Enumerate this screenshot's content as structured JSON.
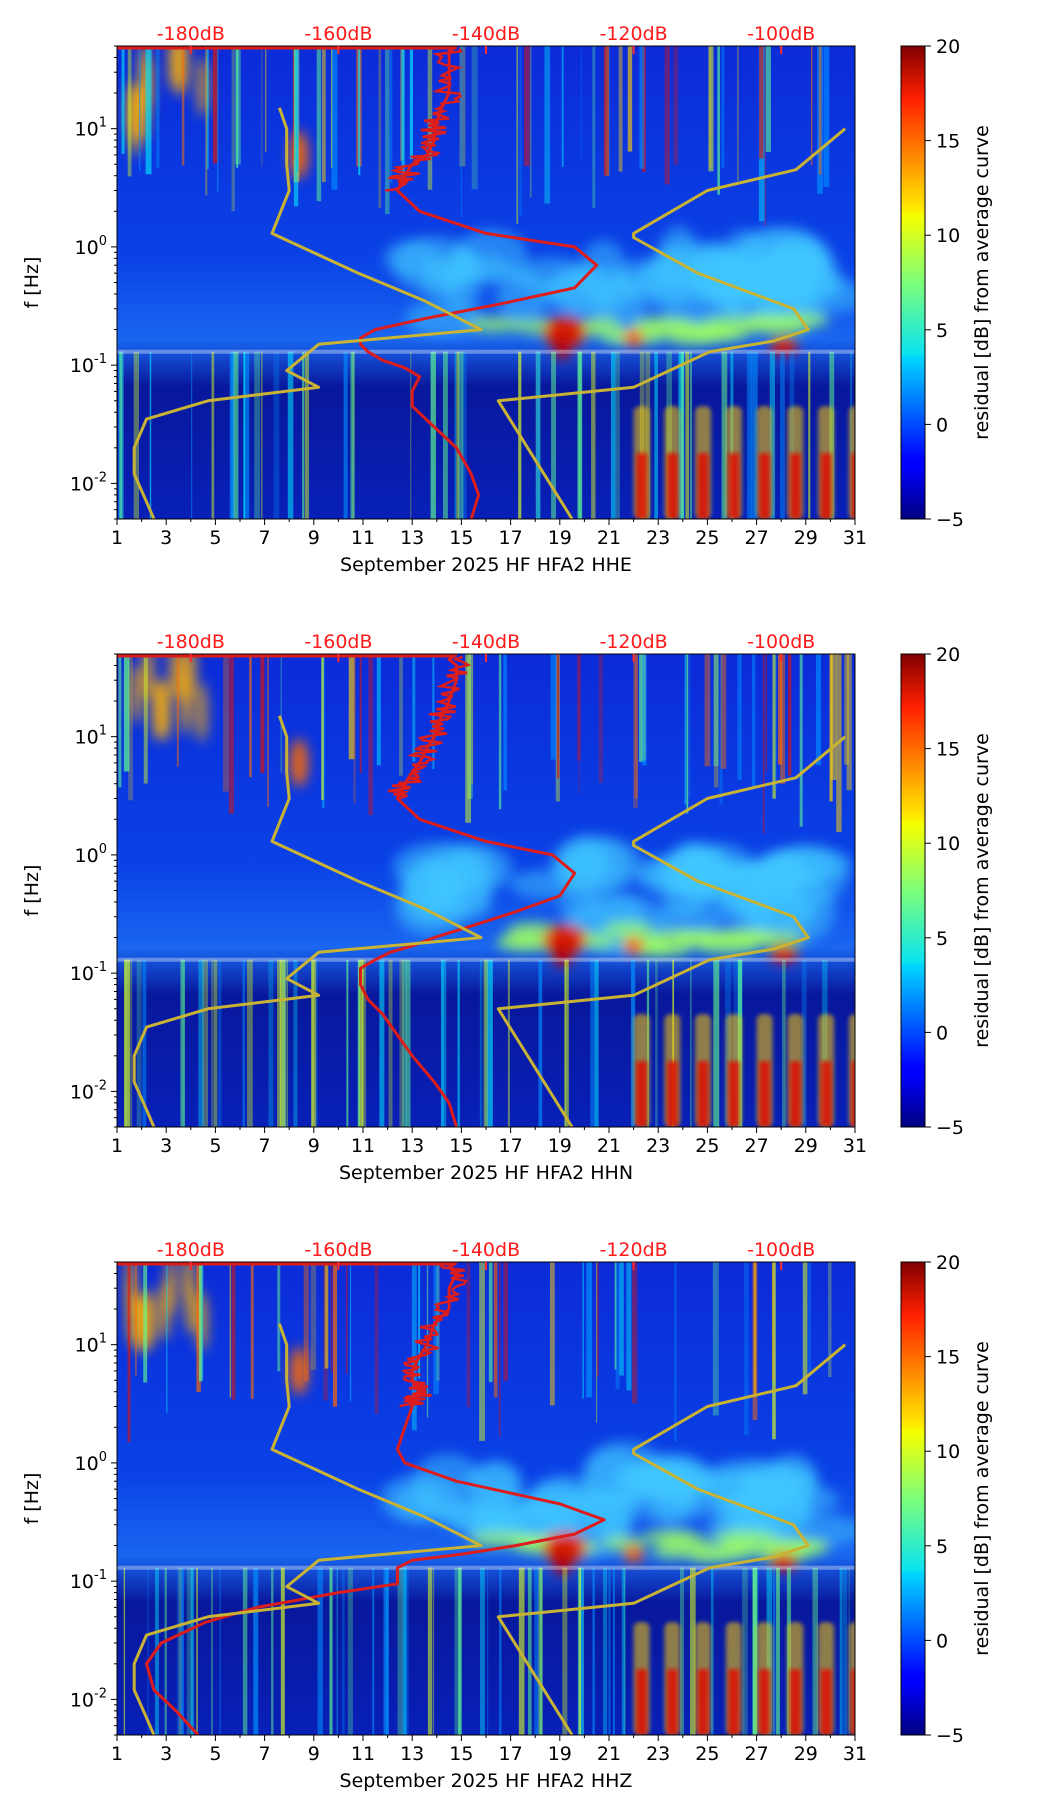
{
  "chart_data": [
    {
      "type": "heatmap",
      "title": "",
      "xlabel": "September 2025 HF HFA2  HHE",
      "ylabel": "f [Hz]",
      "x_ticks": [
        "1",
        "3",
        "5",
        "7",
        "9",
        "11",
        "13",
        "15",
        "17",
        "19",
        "21",
        "23",
        "25",
        "27",
        "29",
        "31"
      ],
      "x_range": [
        1,
        31
      ],
      "y_scale": "log",
      "y_range": [
        0.005,
        50
      ],
      "y_ticks": [
        {
          "exp": "-2",
          "value": 0.01
        },
        {
          "exp": "-1",
          "value": 0.1
        },
        {
          "exp": "0",
          "value": 1
        },
        {
          "exp": "1",
          "value": 10
        }
      ],
      "top_ticks": [
        "-180dB",
        "-160dB",
        "-140dB",
        "-120dB",
        "-100dB"
      ],
      "top_range_dB": [
        -190,
        -90
      ],
      "colorbar": {
        "label": "residual [dB] from average curve",
        "ticks": [
          "20",
          "15",
          "10",
          "5",
          "0",
          "−5"
        ],
        "range": [
          -5,
          20
        ],
        "colormap": "jet"
      },
      "series": [
        {
          "color": "#dd1c1c",
          "dB": [
            -142,
            -141,
            -142,
            -144,
            -147,
            -150,
            -150,
            -149,
            -151,
            -154,
            -156,
            -157,
            -157,
            -155,
            -148,
            -138,
            -128,
            -125,
            -128,
            -140,
            -149,
            -152,
            -151,
            -150,
            -148,
            -147,
            -147,
            -146,
            -145,
            -145,
            -145,
            -145,
            -144
          ],
          "f": [
            0.005,
            0.008,
            0.012,
            0.02,
            0.03,
            0.045,
            0.06,
            0.08,
            0.095,
            0.11,
            0.13,
            0.15,
            0.17,
            0.2,
            0.25,
            0.33,
            0.45,
            0.7,
            1.0,
            1.3,
            2.0,
            3.0,
            4.0,
            5.0,
            6.0,
            8.0,
            10,
            15,
            20,
            30,
            40,
            45,
            50
          ]
        },
        {
          "color": "#c9b335",
          "day": [
            2.5,
            2.2,
            1.7,
            1.7,
            2.2,
            4.7,
            9.2,
            7.9,
            9.2,
            15.8,
            13.5,
            10.8,
            7.3,
            8.0,
            7.9,
            7.9,
            7.6
          ],
          "f": [
            0.005,
            0.007,
            0.012,
            0.02,
            0.035,
            0.05,
            0.065,
            0.09,
            0.15,
            0.2,
            0.35,
            0.6,
            1.3,
            3.0,
            5.0,
            10,
            15
          ]
        },
        {
          "color": "#c9b335",
          "day": [
            19.5,
            16.5,
            22,
            25.1,
            27.7,
            29.1,
            28.5,
            24.6,
            22,
            22,
            25,
            28.6,
            30.6
          ],
          "f": [
            0.005,
            0.05,
            0.065,
            0.13,
            0.16,
            0.2,
            0.3,
            0.6,
            1.2,
            1.3,
            3,
            4.5,
            10
          ]
        }
      ]
    },
    {
      "type": "heatmap",
      "title": "",
      "xlabel": "September 2025 HF HFA2  HHN",
      "ylabel": "f [Hz]",
      "x_ticks": [
        "1",
        "3",
        "5",
        "7",
        "9",
        "11",
        "13",
        "15",
        "17",
        "19",
        "21",
        "23",
        "25",
        "27",
        "29",
        "31"
      ],
      "x_range": [
        1,
        31
      ],
      "y_scale": "log",
      "y_range": [
        0.005,
        50
      ],
      "y_ticks": [
        {
          "exp": "-2",
          "value": 0.01
        },
        {
          "exp": "-1",
          "value": 0.1
        },
        {
          "exp": "0",
          "value": 1
        },
        {
          "exp": "1",
          "value": 10
        }
      ],
      "top_ticks": [
        "-180dB",
        "-160dB",
        "-140dB",
        "-120dB",
        "-100dB"
      ],
      "top_range_dB": [
        -190,
        -90
      ],
      "colorbar": {
        "label": "residual [dB] from average curve",
        "ticks": [
          "20",
          "15",
          "10",
          "5",
          "0",
          "−5"
        ],
        "range": [
          -5,
          20
        ],
        "colormap": "jet"
      },
      "series": [
        {
          "color": "#dd1c1c",
          "dB": [
            -144,
            -145,
            -147,
            -150,
            -152,
            -154,
            -156,
            -157,
            -157,
            -157,
            -155,
            -153,
            -150,
            -147,
            -142,
            -136,
            -130,
            -128,
            -131,
            -140,
            -149,
            -152,
            -151,
            -150,
            -149,
            -148,
            -147,
            -146,
            -145,
            -144,
            -144,
            -145,
            -144
          ],
          "f": [
            0.005,
            0.008,
            0.012,
            0.02,
            0.03,
            0.045,
            0.06,
            0.08,
            0.095,
            0.11,
            0.13,
            0.15,
            0.17,
            0.2,
            0.25,
            0.33,
            0.45,
            0.7,
            1.0,
            1.3,
            2.0,
            3.0,
            4.0,
            5.0,
            6.0,
            8.0,
            10,
            15,
            20,
            30,
            40,
            45,
            50
          ]
        },
        {
          "color": "#c9b335",
          "day": [
            2.5,
            2.2,
            1.7,
            1.7,
            2.2,
            4.7,
            9.2,
            7.9,
            9.2,
            15.8,
            13.5,
            10.8,
            7.3,
            8.0,
            7.9,
            7.9,
            7.6
          ],
          "f": [
            0.005,
            0.007,
            0.012,
            0.02,
            0.035,
            0.05,
            0.065,
            0.09,
            0.15,
            0.2,
            0.35,
            0.6,
            1.3,
            3.0,
            5.0,
            10,
            15
          ]
        },
        {
          "color": "#c9b335",
          "day": [
            19.5,
            16.5,
            22,
            25.1,
            27.7,
            29.1,
            28.5,
            24.6,
            22,
            22,
            25,
            28.6,
            30.6
          ],
          "f": [
            0.005,
            0.05,
            0.065,
            0.13,
            0.16,
            0.2,
            0.3,
            0.6,
            1.2,
            1.3,
            3,
            4.5,
            10
          ]
        }
      ]
    },
    {
      "type": "heatmap",
      "title": "",
      "xlabel": "September 2025 HF HFA2  HHZ",
      "ylabel": "f [Hz]",
      "x_ticks": [
        "1",
        "3",
        "5",
        "7",
        "9",
        "11",
        "13",
        "15",
        "17",
        "19",
        "21",
        "23",
        "25",
        "27",
        "29",
        "31"
      ],
      "x_range": [
        1,
        31
      ],
      "y_scale": "log",
      "y_range": [
        0.005,
        50
      ],
      "y_ticks": [
        {
          "exp": "-2",
          "value": 0.01
        },
        {
          "exp": "-1",
          "value": 0.1
        },
        {
          "exp": "0",
          "value": 1
        },
        {
          "exp": "1",
          "value": 10
        }
      ],
      "top_ticks": [
        "-180dB",
        "-160dB",
        "-140dB",
        "-120dB",
        "-100dB"
      ],
      "top_range_dB": [
        -190,
        -90
      ],
      "colorbar": {
        "label": "residual [dB] from average curve",
        "ticks": [
          "20",
          "15",
          "10",
          "5",
          "0",
          "−5"
        ],
        "range": [
          -5,
          20
        ],
        "colormap": "jet"
      },
      "series": [
        {
          "color": "#dd1c1c",
          "dB": [
            -179,
            -182,
            -185,
            -186,
            -184,
            -178,
            -171,
            -160,
            -152,
            -152,
            -152,
            -150,
            -143,
            -136,
            -128,
            -124,
            -130,
            -144,
            -151,
            -152,
            -151,
            -150,
            -149,
            -150,
            -150,
            -149,
            -148,
            -147,
            -145,
            -145,
            -144,
            -145,
            -144
          ],
          "f": [
            0.005,
            0.008,
            0.012,
            0.02,
            0.03,
            0.045,
            0.06,
            0.08,
            0.095,
            0.11,
            0.13,
            0.15,
            0.17,
            0.2,
            0.25,
            0.33,
            0.45,
            0.7,
            1.0,
            1.3,
            2.0,
            3.0,
            4.0,
            5.0,
            6.0,
            8.0,
            10,
            15,
            20,
            30,
            40,
            45,
            50
          ]
        },
        {
          "color": "#c9b335",
          "day": [
            2.5,
            2.2,
            1.7,
            1.7,
            2.2,
            4.7,
            9.2,
            7.9,
            9.2,
            15.8,
            13.5,
            10.8,
            7.3,
            8.0,
            7.9,
            7.9,
            7.6
          ],
          "f": [
            0.005,
            0.007,
            0.012,
            0.02,
            0.035,
            0.05,
            0.065,
            0.09,
            0.15,
            0.2,
            0.35,
            0.6,
            1.3,
            3.0,
            5.0,
            10,
            15
          ]
        },
        {
          "color": "#c9b335",
          "day": [
            19.5,
            16.5,
            22,
            25.1,
            27.7,
            29.1,
            28.5,
            24.6,
            22,
            22,
            25,
            28.6,
            30.6
          ],
          "f": [
            0.005,
            0.05,
            0.065,
            0.13,
            0.16,
            0.2,
            0.3,
            0.6,
            1.2,
            1.3,
            3,
            4.5,
            10
          ]
        }
      ]
    }
  ]
}
